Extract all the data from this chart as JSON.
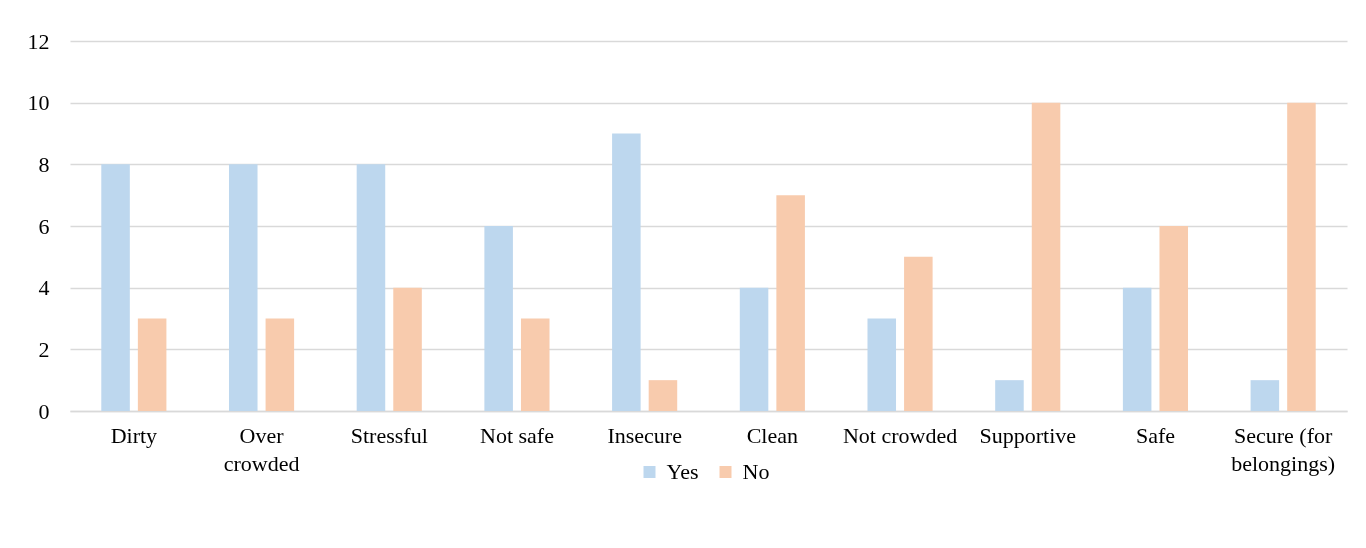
{
  "chart_data": {
    "type": "bar",
    "categories": [
      "Dirty",
      "Over crowded",
      "Stressful",
      "Not safe",
      "Insecure",
      "Clean",
      "Not crowded",
      "Supportive",
      "Safe",
      "Secure (for belongings)"
    ],
    "series": [
      {
        "name": "Yes",
        "color": "#bdd7ee",
        "values": [
          8,
          8,
          8,
          6,
          9,
          4,
          3,
          1,
          4,
          1
        ]
      },
      {
        "name": "No",
        "color": "#f8cbad",
        "values": [
          3,
          3,
          4,
          3,
          1,
          7,
          5,
          10,
          6,
          10
        ]
      }
    ],
    "ylim": [
      0,
      12
    ],
    "yticks": [
      0,
      2,
      4,
      6,
      8,
      10,
      12
    ],
    "grid": "y",
    "legend": "bottom"
  }
}
